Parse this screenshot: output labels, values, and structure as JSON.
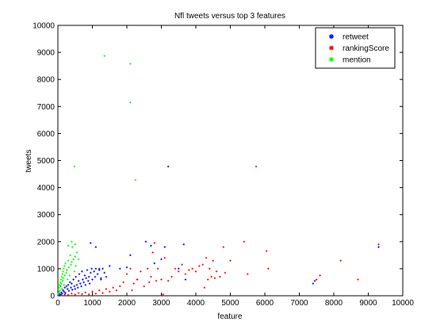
{
  "chart_data": {
    "type": "scatter",
    "title": "Nfl tweets versus top 3 features",
    "xlabel": "feature",
    "ylabel": "tweets",
    "xlim": [
      0,
      10000
    ],
    "ylim": [
      0,
      10000
    ],
    "xticks": [
      0,
      1000,
      2000,
      3000,
      4000,
      5000,
      6000,
      7000,
      8000,
      9000,
      10000
    ],
    "yticks": [
      0,
      1000,
      2000,
      3000,
      4000,
      5000,
      6000,
      7000,
      8000,
      9000,
      10000
    ],
    "grid": false,
    "legend_position": "top-right",
    "series": [
      {
        "name": "retweet",
        "color": "#0000ff",
        "points": [
          [
            20,
            10
          ],
          [
            40,
            30
          ],
          [
            60,
            60
          ],
          [
            80,
            20
          ],
          [
            100,
            120
          ],
          [
            120,
            80
          ],
          [
            150,
            200
          ],
          [
            180,
            150
          ],
          [
            200,
            300
          ],
          [
            220,
            100
          ],
          [
            250,
            350
          ],
          [
            280,
            250
          ],
          [
            300,
            400
          ],
          [
            320,
            180
          ],
          [
            350,
            500
          ],
          [
            380,
            300
          ],
          [
            400,
            450
          ],
          [
            420,
            220
          ],
          [
            450,
            600
          ],
          [
            480,
            350
          ],
          [
            500,
            250
          ],
          [
            520,
            700
          ],
          [
            550,
            400
          ],
          [
            580,
            300
          ],
          [
            600,
            550
          ],
          [
            620,
            800
          ],
          [
            650,
            450
          ],
          [
            680,
            350
          ],
          [
            700,
            900
          ],
          [
            720,
            600
          ],
          [
            750,
            500
          ],
          [
            780,
            750
          ],
          [
            800,
            400
          ],
          [
            820,
            650
          ],
          [
            850,
            950
          ],
          [
            880,
            550
          ],
          [
            900,
            700
          ],
          [
            920,
            450
          ],
          [
            950,
            850
          ],
          [
            980,
            1000
          ],
          [
            1000,
            600
          ],
          [
            1050,
            900
          ],
          [
            1080,
            700
          ],
          [
            1100,
            1000
          ],
          [
            1150,
            800
          ],
          [
            1200,
            950
          ],
          [
            1250,
            650
          ],
          [
            1300,
            1000
          ],
          [
            1350,
            850
          ],
          [
            1400,
            700
          ],
          [
            950,
            1950
          ],
          [
            1100,
            1800
          ],
          [
            1200,
            1000
          ],
          [
            1250,
            600
          ],
          [
            1500,
            1100
          ],
          [
            1800,
            1000
          ],
          [
            2000,
            1050
          ],
          [
            2100,
            1500
          ],
          [
            2300,
            600
          ],
          [
            2550,
            2000
          ],
          [
            2700,
            1850
          ],
          [
            2800,
            1200
          ],
          [
            3000,
            1350
          ],
          [
            3100,
            1800
          ],
          [
            3200,
            4780
          ],
          [
            3500,
            1000
          ],
          [
            3650,
            1900
          ],
          [
            3700,
            600
          ],
          [
            7400,
            450
          ],
          [
            7450,
            550
          ],
          [
            9300,
            1800
          ]
        ]
      },
      {
        "name": "rankingScore",
        "color": "#ff0000",
        "points": [
          [
            100,
            20
          ],
          [
            200,
            50
          ],
          [
            300,
            30
          ],
          [
            400,
            80
          ],
          [
            500,
            40
          ],
          [
            600,
            100
          ],
          [
            700,
            60
          ],
          [
            800,
            120
          ],
          [
            900,
            50
          ],
          [
            1000,
            150
          ],
          [
            1100,
            80
          ],
          [
            1200,
            200
          ],
          [
            1300,
            100
          ],
          [
            1400,
            250
          ],
          [
            1500,
            150
          ],
          [
            1600,
            300
          ],
          [
            1700,
            200
          ],
          [
            1800,
            350
          ],
          [
            1900,
            500
          ],
          [
            2000,
            800
          ],
          [
            2100,
            1000
          ],
          [
            2150,
            200
          ],
          [
            2200,
            450
          ],
          [
            2300,
            600
          ],
          [
            2400,
            900
          ],
          [
            2500,
            350
          ],
          [
            2600,
            1000
          ],
          [
            2650,
            500
          ],
          [
            2700,
            700
          ],
          [
            2750,
            1600
          ],
          [
            2800,
            1950
          ],
          [
            2850,
            550
          ],
          [
            2900,
            1000
          ],
          [
            3000,
            600
          ],
          [
            3050,
            50
          ],
          [
            3100,
            1400
          ],
          [
            3200,
            550
          ],
          [
            3300,
            700
          ],
          [
            3400,
            1000
          ],
          [
            3500,
            900
          ],
          [
            3600,
            1150
          ],
          [
            3700,
            800
          ],
          [
            3800,
            950
          ],
          [
            3900,
            1000
          ],
          [
            4000,
            900
          ],
          [
            4100,
            1100
          ],
          [
            4200,
            1150
          ],
          [
            4250,
            300
          ],
          [
            4300,
            1400
          ],
          [
            4350,
            600
          ],
          [
            4400,
            1000
          ],
          [
            4450,
            700
          ],
          [
            4500,
            1300
          ],
          [
            4550,
            650
          ],
          [
            4600,
            900
          ],
          [
            4700,
            700
          ],
          [
            4800,
            1800
          ],
          [
            4850,
            850
          ],
          [
            5000,
            1300
          ],
          [
            5400,
            2000
          ],
          [
            5500,
            800
          ],
          [
            5750,
            4780
          ],
          [
            6050,
            1650
          ],
          [
            6100,
            1000
          ],
          [
            7500,
            600
          ],
          [
            7600,
            750
          ],
          [
            8200,
            1300
          ],
          [
            8700,
            600
          ],
          [
            9300,
            1900
          ]
        ]
      },
      {
        "name": "mention",
        "color": "#00ff00",
        "points": [
          [
            10,
            50
          ],
          [
            20,
            100
          ],
          [
            30,
            300
          ],
          [
            40,
            150
          ],
          [
            50,
            400
          ],
          [
            60,
            200
          ],
          [
            70,
            500
          ],
          [
            80,
            350
          ],
          [
            90,
            600
          ],
          [
            100,
            450
          ],
          [
            110,
            700
          ],
          [
            120,
            250
          ],
          [
            130,
            800
          ],
          [
            140,
            550
          ],
          [
            150,
            900
          ],
          [
            160,
            650
          ],
          [
            170,
            1000
          ],
          [
            180,
            400
          ],
          [
            190,
            1100
          ],
          [
            200,
            750
          ],
          [
            220,
            1200
          ],
          [
            240,
            850
          ],
          [
            260,
            950
          ],
          [
            280,
            600
          ],
          [
            300,
            1300
          ],
          [
            320,
            1050
          ],
          [
            340,
            750
          ],
          [
            360,
            1500
          ],
          [
            380,
            1150
          ],
          [
            400,
            1250
          ],
          [
            420,
            1800
          ],
          [
            450,
            1350
          ],
          [
            480,
            900
          ],
          [
            500,
            1450
          ],
          [
            520,
            1100
          ],
          [
            550,
            1600
          ],
          [
            600,
            1350
          ],
          [
            300,
            1850
          ],
          [
            400,
            2000
          ],
          [
            500,
            1900
          ],
          [
            480,
            4780
          ],
          [
            1350,
            8870
          ],
          [
            2100,
            8580
          ],
          [
            2100,
            7150
          ],
          [
            2250,
            4280
          ]
        ]
      }
    ]
  }
}
